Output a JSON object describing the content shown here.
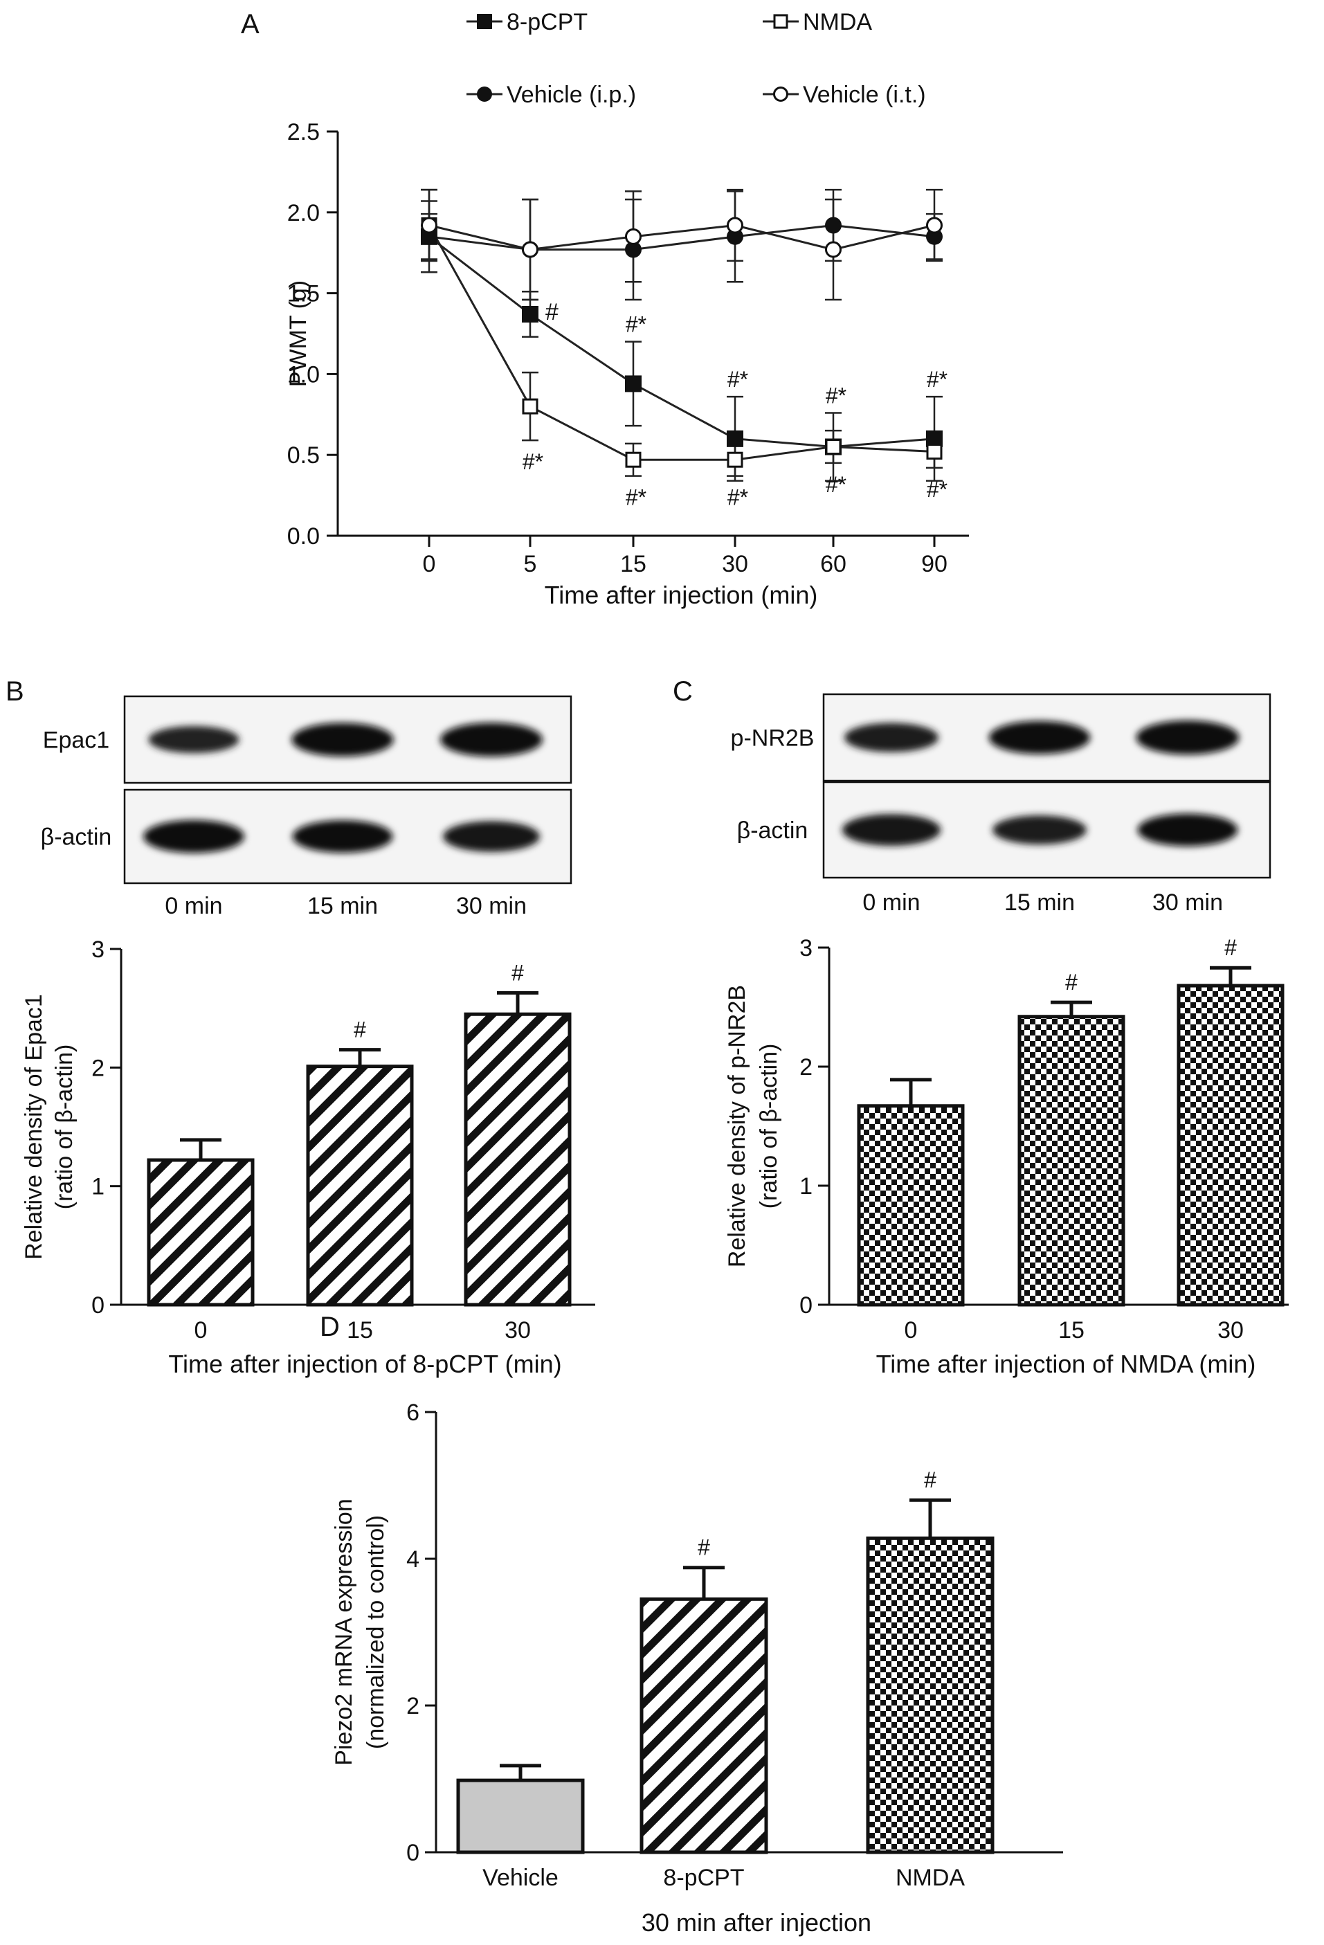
{
  "chart_data": [
    {
      "panel": "A",
      "type": "line",
      "xlabel": "Time after injection (min)",
      "ylabel": "PWMT (g)",
      "categories": [
        "0",
        "5",
        "15",
        "30",
        "60",
        "90"
      ],
      "ylim": [
        0,
        2.5
      ],
      "yticks": [
        "0.0",
        "0.5",
        "1.0",
        "1.5",
        "2.0",
        "2.5"
      ],
      "legend_placement": "top",
      "series": [
        {
          "name": "8-pCPT",
          "marker": "filled-square",
          "values": [
            1.85,
            1.37,
            0.94,
            0.6,
            0.55,
            0.6
          ],
          "errors": [
            0.22,
            0.14,
            0.26,
            0.26,
            0.21,
            0.26
          ]
        },
        {
          "name": "NMDA",
          "marker": "open-square",
          "values": [
            1.92,
            0.8,
            0.47,
            0.47,
            0.55,
            0.52
          ],
          "errors": [
            0.22,
            0.21,
            0.1,
            0.1,
            0.1,
            0.1
          ]
        },
        {
          "name": "Vehicle (i.p.)",
          "marker": "filled-circle",
          "values": [
            1.85,
            1.77,
            1.77,
            1.85,
            1.92,
            1.85
          ],
          "errors": [
            0.14,
            0.31,
            0.31,
            0.28,
            0.22,
            0.14
          ]
        },
        {
          "name": "Vehicle (i.t.)",
          "marker": "open-circle",
          "values": [
            1.92,
            1.77,
            1.85,
            1.92,
            1.77,
            1.92
          ],
          "errors": [
            0.22,
            0.31,
            0.28,
            0.22,
            0.31,
            0.22
          ]
        }
      ],
      "annotations": [
        {
          "category": 1,
          "text": "#",
          "anchor": "8-pCPT",
          "pos": "right"
        },
        {
          "category": 1,
          "text": "#*",
          "anchor": "NMDA",
          "pos": "below"
        },
        {
          "category": 2,
          "text": "#*",
          "anchor": "8-pCPT",
          "pos": "above"
        },
        {
          "category": 2,
          "text": "#*",
          "anchor": "NMDA",
          "pos": "below"
        },
        {
          "category": 3,
          "text": "#*",
          "anchor": "8-pCPT",
          "pos": "above"
        },
        {
          "category": 3,
          "text": "#*",
          "anchor": "NMDA",
          "pos": "below"
        },
        {
          "category": 4,
          "text": "#*",
          "anchor": "8-pCPT",
          "pos": "above"
        },
        {
          "category": 4,
          "text": "#*",
          "anchor": "NMDA",
          "pos": "below"
        },
        {
          "category": 5,
          "text": "#*",
          "anchor": "8-pCPT",
          "pos": "above"
        },
        {
          "category": 5,
          "text": "#*",
          "anchor": "NMDA",
          "pos": "below"
        }
      ]
    },
    {
      "panel": "B",
      "type": "bar",
      "pattern": "diagonal-stripes",
      "xlabel": "Time after injection of 8-pCPT (min)",
      "ylabel_lines": [
        "Relative density of Epac1",
        "(ratio of β-actin)"
      ],
      "categories": [
        "0",
        "15",
        "30"
      ],
      "values": [
        1.22,
        2.01,
        2.45
      ],
      "errors": [
        0.17,
        0.14,
        0.18
      ],
      "significance": [
        "",
        "#",
        "#"
      ],
      "ylim": [
        0,
        3
      ],
      "yticks": [
        "0",
        "1",
        "2",
        "3"
      ]
    },
    {
      "panel": "C",
      "type": "bar",
      "pattern": "checkerboard",
      "xlabel": "Time after injection of NMDA (min)",
      "ylabel_lines": [
        "Relative density of p-NR2B",
        "(ratio of β-actin)"
      ],
      "categories": [
        "0",
        "15",
        "30"
      ],
      "values": [
        1.67,
        2.42,
        2.68
      ],
      "errors": [
        0.22,
        0.12,
        0.15
      ],
      "significance": [
        "",
        "#",
        "#"
      ],
      "ylim": [
        0,
        3
      ],
      "yticks": [
        "0",
        "1",
        "2",
        "3"
      ]
    },
    {
      "panel": "D",
      "type": "bar",
      "xlabel": "30 min after injection",
      "ylabel_lines": [
        "Piezo2 mRNA expression",
        "(normalized to control)"
      ],
      "categories": [
        "Vehicle",
        "8-pCPT",
        "NMDA"
      ],
      "patterns": [
        "solid-gray",
        "diagonal-stripes",
        "checkerboard"
      ],
      "values": [
        0.98,
        3.45,
        4.28
      ],
      "errors": [
        0.2,
        0.43,
        0.52
      ],
      "significance": [
        "",
        "#",
        "#"
      ],
      "ylim": [
        0,
        6
      ],
      "yticks": [
        "0",
        "2",
        "4",
        "6"
      ]
    }
  ],
  "blots": {
    "B": {
      "rows": [
        {
          "label": "Epac1",
          "intensity": [
            0.62,
            0.95,
            0.96
          ]
        },
        {
          "label": "β-actin",
          "intensity": [
            0.92,
            0.9,
            0.8
          ]
        }
      ],
      "lanes": [
        "0 min",
        "15 min",
        "30 min"
      ]
    },
    "C": {
      "rows": [
        {
          "label": "p-NR2B",
          "intensity": [
            0.72,
            0.93,
            0.98
          ]
        },
        {
          "label": "β-actin",
          "intensity": [
            0.85,
            0.72,
            0.9
          ]
        }
      ],
      "lanes": [
        "0 min",
        "15 min",
        "30 min"
      ]
    }
  },
  "colors": {
    "ink": "#111111",
    "bar_gray": "#c8c8c8",
    "line": "#222222"
  }
}
